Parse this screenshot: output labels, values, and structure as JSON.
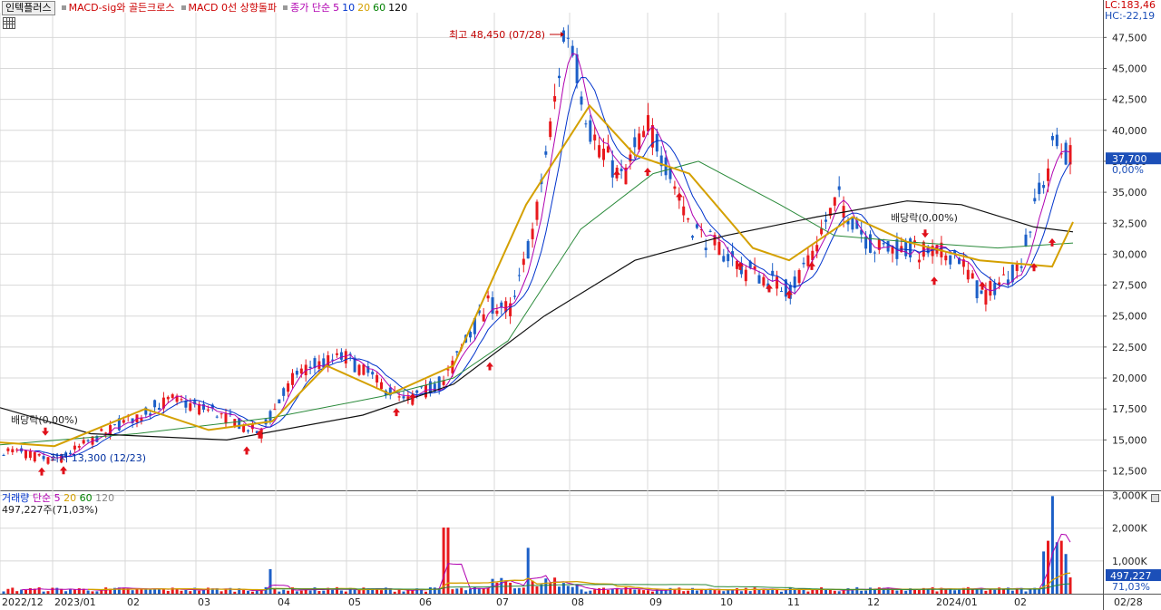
{
  "legend": {
    "box": "인텍플러스",
    "items": [
      {
        "label": "MACD-sig와 골든크로스",
        "color": "#cc0000"
      },
      {
        "label": "MACD 0선 상향돌파",
        "color": "#cc0000"
      },
      {
        "label": "종가 단순",
        "color": "#b000b0"
      },
      {
        "label": "5",
        "color": "#b000b0"
      },
      {
        "label": "10",
        "color": "#0033cc"
      },
      {
        "label": "20",
        "color": "#d4a000"
      },
      {
        "label": "60",
        "color": "#008000"
      },
      {
        "label": "120",
        "color": "#000000"
      }
    ]
  },
  "right_top": {
    "lc": "LC:183,46",
    "hc": "HC:-22,19"
  },
  "price_axis": {
    "ticks": [
      "47,500",
      "45,000",
      "42,500",
      "40,000",
      "37,500",
      "35,000",
      "32,500",
      "30,000",
      "27,500",
      "25,000",
      "22,500",
      "20,000",
      "17,500",
      "15,000",
      "12,500"
    ],
    "current_price": "37,700",
    "current_pct": "0,00%"
  },
  "volume_axis": {
    "ticks": [
      "3,000K",
      "2,000K",
      "1,000K"
    ],
    "current_volume": "497,227",
    "current_pct": "71,03%"
  },
  "volume_legend": {
    "items": [
      {
        "label": "거래량",
        "color": "#0033cc"
      },
      {
        "label": "단순 5",
        "color": "#b000b0"
      },
      {
        "label": "20",
        "color": "#d4a000"
      },
      {
        "label": "60",
        "color": "#008000"
      },
      {
        "label": "120",
        "color": "#888888"
      }
    ],
    "value": "497,227주(71,03%)"
  },
  "annotations": {
    "high": "최고 48,450 (07/28)",
    "low": "최저 13,300 (12/23)",
    "div_left": "배당락(0,00%)",
    "div_right": "배당락(0,00%)"
  },
  "x_labels": [
    "2022/12",
    "2023/01",
    "02",
    "03",
    "04",
    "05",
    "06",
    "07",
    "08",
    "09",
    "10",
    "11",
    "12",
    "2024/01",
    "02",
    "02/28"
  ],
  "colors": {
    "up": "#e8191d",
    "down": "#1c5fc7",
    "ma5": "#b000b0",
    "ma10": "#0033cc",
    "ma20": "#d4a000",
    "ma60": "#2a8a3a",
    "ma120": "#111111",
    "grid": "#d8d8d8",
    "price_tag": "#1c4fb8"
  },
  "chart_data": {
    "type": "candlestick",
    "title": "인텍플러스",
    "y_range": [
      11000,
      49500
    ],
    "volume_range_K": [
      0,
      3100
    ],
    "price_key_points": [
      {
        "date": "2022-12-01",
        "close": 14200
      },
      {
        "date": "2022-12-23",
        "close": 13300
      },
      {
        "date": "2023-01-15",
        "close": 15800
      },
      {
        "date": "2023-02-10",
        "close": 18300
      },
      {
        "date": "2023-03-01",
        "close": 17200
      },
      {
        "date": "2023-03-20",
        "close": 15500
      },
      {
        "date": "2023-04-05",
        "close": 20600
      },
      {
        "date": "2023-04-25",
        "close": 21700
      },
      {
        "date": "2023-05-20",
        "close": 18000
      },
      {
        "date": "2023-06-05",
        "close": 19600
      },
      {
        "date": "2023-06-25",
        "close": 26000
      },
      {
        "date": "2023-07-05",
        "close": 25500
      },
      {
        "date": "2023-07-15",
        "close": 33000
      },
      {
        "date": "2023-07-28",
        "close": 48450
      },
      {
        "date": "2023-08-07",
        "close": 40000
      },
      {
        "date": "2023-08-20",
        "close": 36000
      },
      {
        "date": "2023-09-01",
        "close": 40500
      },
      {
        "date": "2023-09-20",
        "close": 32000
      },
      {
        "date": "2023-10-10",
        "close": 29000
      },
      {
        "date": "2023-10-31",
        "close": 27000
      },
      {
        "date": "2023-11-20",
        "close": 34500
      },
      {
        "date": "2023-12-05",
        "close": 30500
      },
      {
        "date": "2024-01-10",
        "close": 30000
      },
      {
        "date": "2024-01-20",
        "close": 26500
      },
      {
        "date": "2024-02-05",
        "close": 29000
      },
      {
        "date": "2024-02-20",
        "close": 38800
      },
      {
        "date": "2024-02-28",
        "close": 37700
      }
    ],
    "ma": {
      "ma20_points": [
        [
          0,
          14800
        ],
        [
          60,
          14500
        ],
        [
          160,
          17500
        ],
        [
          230,
          15800
        ],
        [
          300,
          16500
        ],
        [
          360,
          21000
        ],
        [
          430,
          18700
        ],
        [
          500,
          21000
        ],
        [
          580,
          34000
        ],
        [
          650,
          42000
        ],
        [
          700,
          38000
        ],
        [
          760,
          36500
        ],
        [
          830,
          30500
        ],
        [
          870,
          29500
        ],
        [
          940,
          33000
        ],
        [
          1000,
          31000
        ],
        [
          1080,
          29500
        ],
        [
          1160,
          29000
        ],
        [
          1183,
          32600
        ]
      ],
      "ma60_points": [
        [
          0,
          14600
        ],
        [
          150,
          15500
        ],
        [
          300,
          16800
        ],
        [
          420,
          18500
        ],
        [
          500,
          20000
        ],
        [
          560,
          23000
        ],
        [
          640,
          32000
        ],
        [
          720,
          36500
        ],
        [
          770,
          37500
        ],
        [
          860,
          34000
        ],
        [
          920,
          31500
        ],
        [
          1000,
          31000
        ],
        [
          1100,
          30500
        ],
        [
          1183,
          30900
        ]
      ],
      "ma120_points": [
        [
          0,
          17600
        ],
        [
          100,
          15500
        ],
        [
          250,
          15000
        ],
        [
          400,
          17000
        ],
        [
          500,
          19500
        ],
        [
          600,
          25000
        ],
        [
          700,
          29500
        ],
        [
          800,
          31500
        ],
        [
          900,
          33000
        ],
        [
          1000,
          34300
        ],
        [
          1060,
          34000
        ],
        [
          1140,
          32200
        ],
        [
          1183,
          31800
        ]
      ]
    },
    "x_tick_labels": [
      "2022/12",
      "2023/01",
      "02",
      "03",
      "04",
      "05",
      "06",
      "07",
      "08",
      "09",
      "10",
      "11",
      "12",
      "2024/01",
      "02"
    ],
    "last": {
      "close": 37700,
      "volume": 497227
    }
  }
}
